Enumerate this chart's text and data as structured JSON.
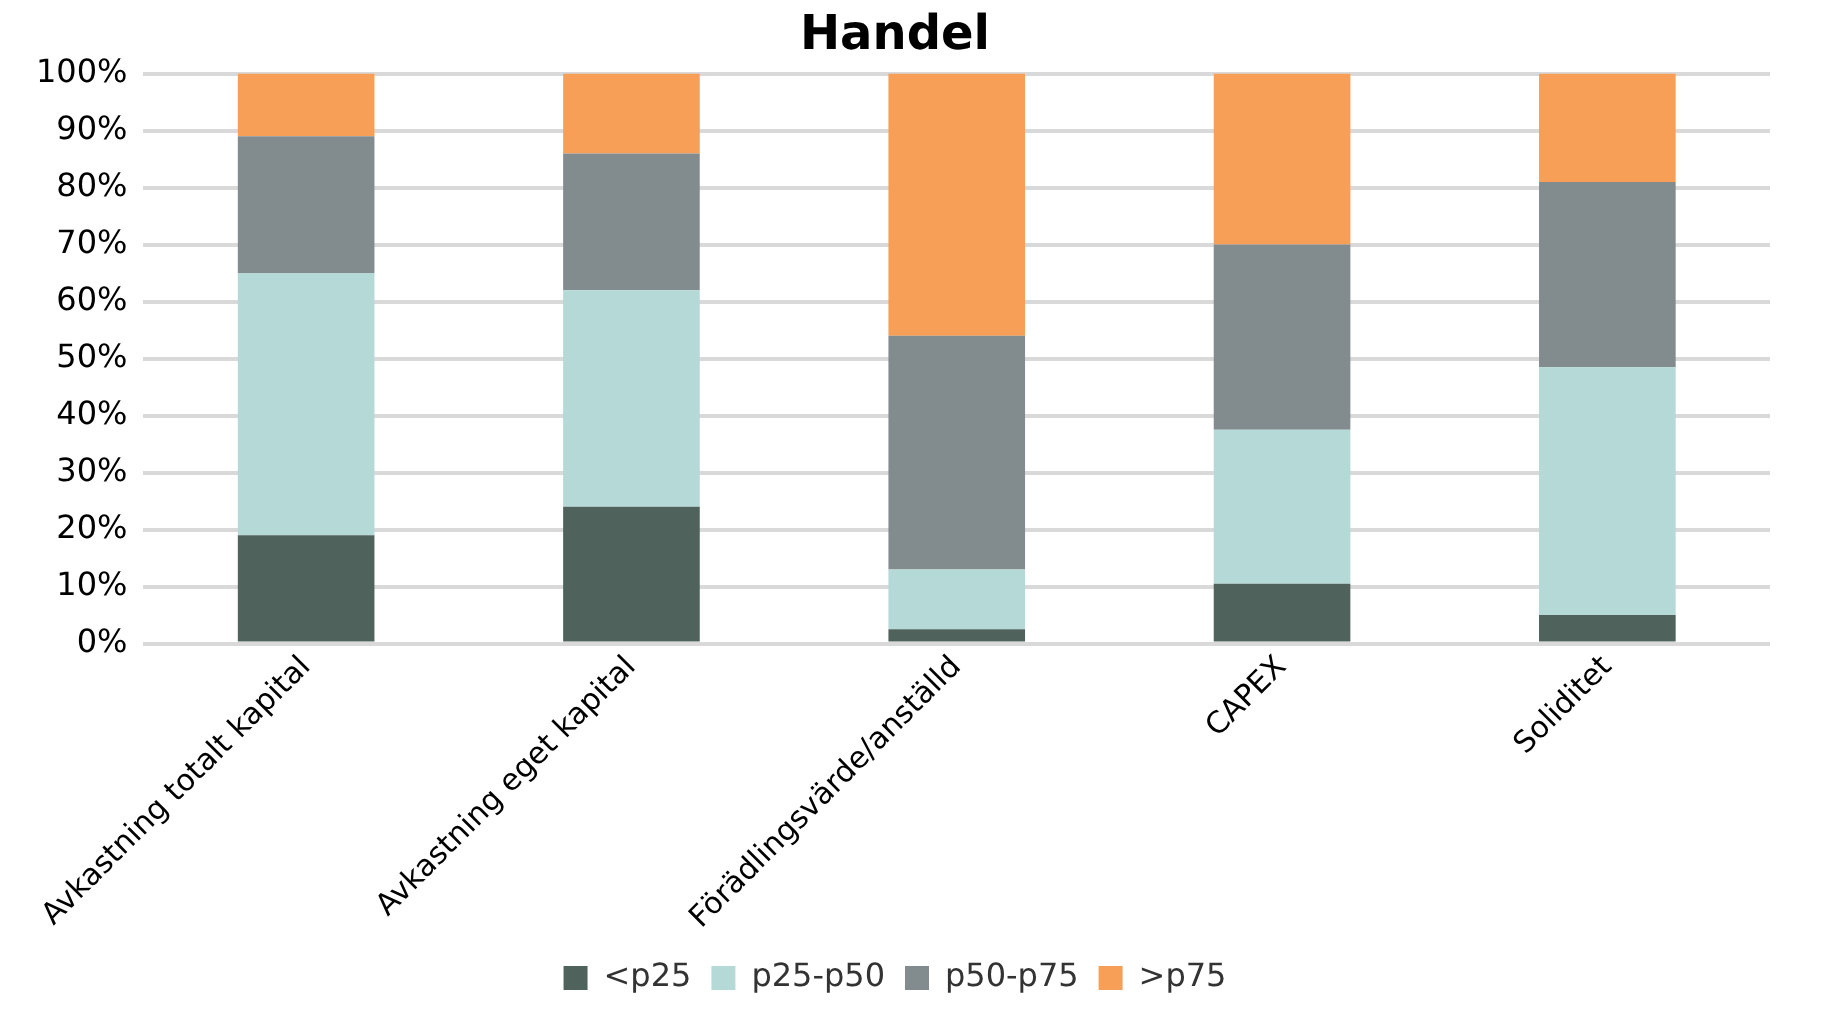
{
  "chart_data": {
    "type": "bar",
    "title": "Handel",
    "stacked": true,
    "categories": [
      "Avkastning totalt kapital",
      "Avkastning eget kapital",
      "Förädlingsvärde/anställd",
      "CAPEX",
      "Soliditet"
    ],
    "series": [
      {
        "name": "<p25",
        "color": "#4f625b",
        "values": [
          19,
          24,
          2.5,
          10.5,
          5
        ]
      },
      {
        "name": "p25-p50",
        "color": "#b4d9d6",
        "values": [
          46,
          38,
          10.5,
          27,
          43.5
        ]
      },
      {
        "name": "p50-p75",
        "color": "#828c8f",
        "values": [
          24,
          24,
          41,
          32.5,
          32.5
        ]
      },
      {
        "name": ">p75",
        "color": "#f79f56",
        "values": [
          11,
          14,
          46,
          30,
          19
        ]
      }
    ],
    "ylim": [
      0,
      100
    ],
    "yticks": [
      {
        "value": 0,
        "label": "0%"
      },
      {
        "value": 10,
        "label": "10%"
      },
      {
        "value": 20,
        "label": "20%"
      },
      {
        "value": 30,
        "label": "30%"
      },
      {
        "value": 40,
        "label": "40%"
      },
      {
        "value": 50,
        "label": "50%"
      },
      {
        "value": 60,
        "label": "60%"
      },
      {
        "value": 70,
        "label": "70%"
      },
      {
        "value": 80,
        "label": "80%"
      },
      {
        "value": 90,
        "label": "90%"
      },
      {
        "value": 100,
        "label": "100%"
      }
    ],
    "grid": "y",
    "legend": "bottom"
  }
}
